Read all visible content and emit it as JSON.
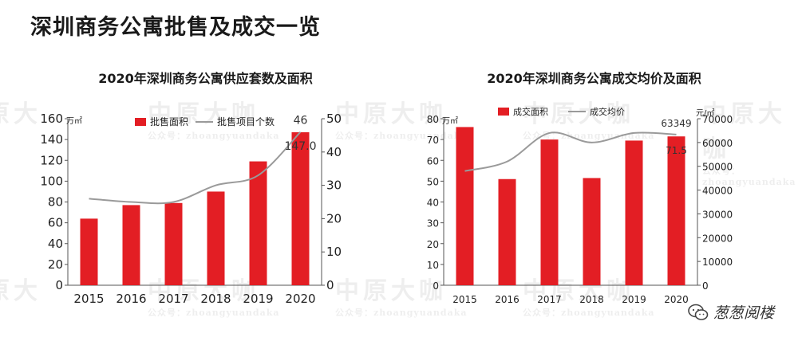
{
  "page": {
    "title": "深圳商务公寓批售及成交一览"
  },
  "watermark": {
    "text": "中原大咖",
    "sub": "zhoangyuandaka",
    "account": "公众号："
  },
  "social": {
    "icon": "wechat-icon",
    "name": "葱葱阅楼"
  },
  "chart_data": [
    {
      "type": "bar",
      "title": "2020年深圳商务公寓供应套数及面积",
      "categories": [
        "2015",
        "2016",
        "2017",
        "2018",
        "2019",
        "2020"
      ],
      "series": [
        {
          "name": "批售面积",
          "kind": "bar",
          "axis": "left",
          "color": "#e31e24",
          "values": [
            64,
            77,
            79,
            90,
            119,
            147
          ]
        },
        {
          "name": "批售项目个数",
          "kind": "line",
          "axis": "right",
          "color": "#9a9a9a",
          "values": [
            26,
            25,
            25,
            30,
            33,
            46
          ]
        }
      ],
      "y_left": {
        "unit": "万㎡",
        "ylim": [
          0,
          160
        ],
        "ticks": [
          0,
          20,
          40,
          60,
          80,
          100,
          120,
          140,
          160
        ]
      },
      "y_right": {
        "unit": "",
        "ylim": [
          0,
          50
        ],
        "ticks": [
          0,
          10,
          20,
          30,
          40,
          50
        ]
      },
      "data_labels": [
        {
          "series": "批售面积",
          "category": "2020",
          "text": "147.0"
        },
        {
          "series": "批售项目个数",
          "category": "2020",
          "text": "46"
        }
      ],
      "legend": "top",
      "grid": false
    },
    {
      "type": "bar",
      "title": "2020年深圳商务公寓成交均价及面积",
      "categories": [
        "2015",
        "2016",
        "2017",
        "2018",
        "2019",
        "2020"
      ],
      "series": [
        {
          "name": "成交面积",
          "kind": "bar",
          "axis": "left",
          "color": "#e31e24",
          "values": [
            76,
            51,
            70,
            51.5,
            69.5,
            71.5
          ]
        },
        {
          "name": "成交均价",
          "kind": "line",
          "axis": "right",
          "color": "#9a9a9a",
          "values": [
            48000,
            52000,
            64000,
            60000,
            64000,
            63349
          ]
        }
      ],
      "y_left": {
        "unit": "万㎡",
        "ylim": [
          0,
          80
        ],
        "ticks": [
          0,
          10,
          20,
          30,
          40,
          50,
          60,
          70,
          80
        ]
      },
      "y_right": {
        "unit": "元/㎡",
        "ylim": [
          0,
          70000
        ],
        "ticks": [
          0,
          10000,
          20000,
          30000,
          40000,
          50000,
          60000,
          70000
        ]
      },
      "data_labels": [
        {
          "series": "成交面积",
          "category": "2020",
          "text": "71.5"
        },
        {
          "series": "成交均价",
          "category": "2020",
          "text": "63349"
        }
      ],
      "legend": "top",
      "grid": false
    }
  ]
}
